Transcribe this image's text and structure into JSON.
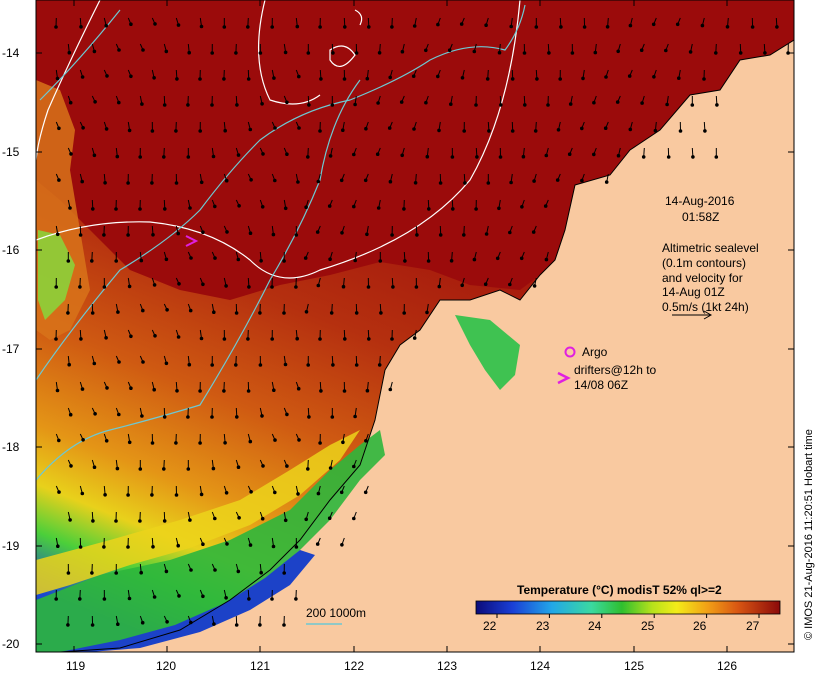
{
  "map": {
    "lon_ticks": [
      "119",
      "120",
      "121",
      "122",
      "123",
      "124",
      "125",
      "126"
    ],
    "lat_ticks": [
      "-14",
      "-15",
      "-16",
      "-17",
      "-18",
      "-19",
      "-20"
    ],
    "lon_range": [
      118.6,
      126.7
    ],
    "lat_range": [
      -13.6,
      -20.1
    ]
  },
  "annotations": {
    "date": "14-Aug-2016",
    "time": "01:58Z",
    "altimetry_lines": [
      "Altimetric sealevel",
      "(0.1m contours)",
      "and velocity for",
      "14-Aug 01Z",
      "0.5m/s (1kt 24h)"
    ],
    "argo_label": "Argo",
    "drifters_line1": "drifters@12h to",
    "drifters_line2": "14/08 06Z",
    "depth_label": "200  1000m",
    "credit": "© IMOS 21-Aug-2016 11:20:51 Hobart time"
  },
  "colorbar": {
    "title": "Temperature (°C) modisT 52% ql>=2",
    "ticks": [
      "22",
      "23",
      "24",
      "25",
      "26",
      "27"
    ],
    "range": [
      21.6,
      27.4
    ]
  },
  "colors": {
    "land": "#f9c9a0",
    "warm": "#9b0b0b",
    "contour": "#ffffff",
    "isobath": "#6ec8d2",
    "argo": "#e020e0"
  }
}
